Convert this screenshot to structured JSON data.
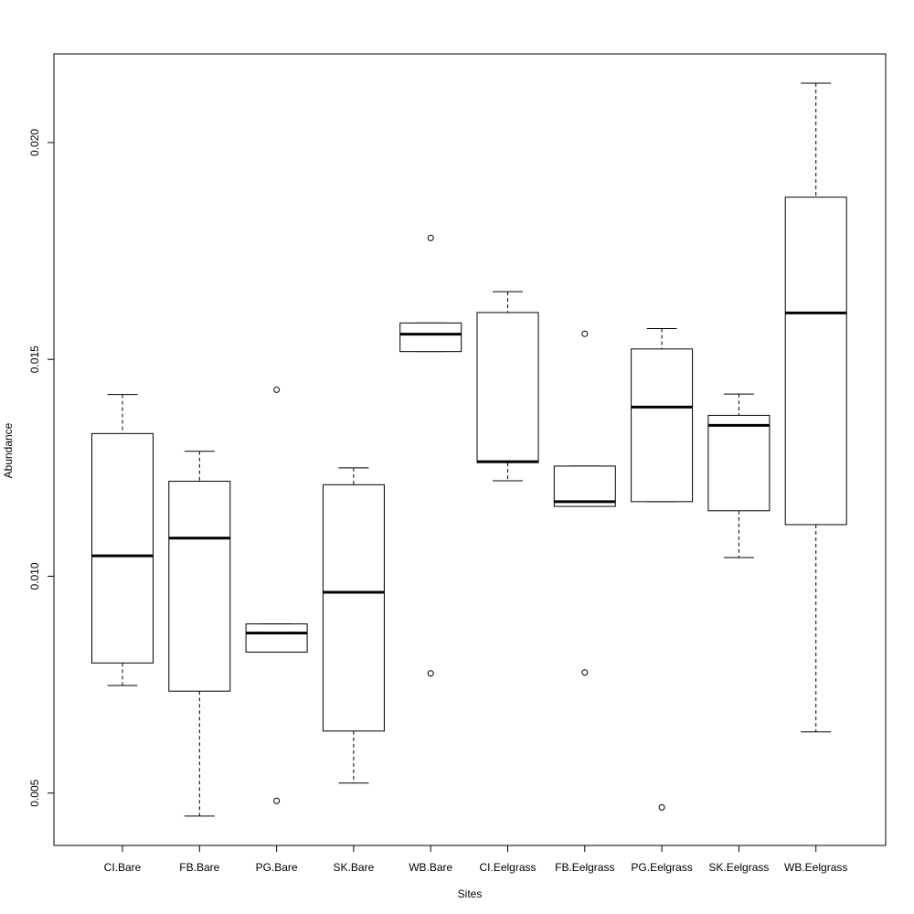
{
  "chart_data": {
    "type": "boxplot",
    "title": "",
    "xlabel": "Sites",
    "ylabel": "Abundance",
    "ylim": [
      0.0044,
      0.0217
    ],
    "yticks": [
      0.005,
      0.01,
      0.015,
      0.02
    ],
    "ytick_labels": [
      "0.005",
      "0.010",
      "0.015",
      "0.020"
    ],
    "grid": false,
    "categories": [
      "CI.Bare",
      "FB.Bare",
      "PG.Bare",
      "SK.Bare",
      "WB.Bare",
      "CI.Eelgrass",
      "FB.Eelgrass",
      "PG.Eelgrass",
      "SK.Eelgrass",
      "WB.Eelgrass"
    ],
    "boxes": [
      {
        "category": "CI.Bare",
        "whisker_low": 0.00748,
        "q1": 0.008,
        "median": 0.01047,
        "q3": 0.01329,
        "whisker_high": 0.01419,
        "outliers": []
      },
      {
        "category": "FB.Bare",
        "whisker_low": 0.00447,
        "q1": 0.00735,
        "median": 0.01088,
        "q3": 0.01219,
        "whisker_high": 0.01288,
        "outliers": []
      },
      {
        "category": "PG.Bare",
        "whisker_low": 0.00825,
        "q1": 0.00825,
        "median": 0.00869,
        "q3": 0.0089,
        "whisker_high": 0.0089,
        "outliers": [
          0.0143,
          0.00482
        ]
      },
      {
        "category": "SK.Bare",
        "whisker_low": 0.00523,
        "q1": 0.00643,
        "median": 0.00963,
        "q3": 0.01211,
        "whisker_high": 0.0125,
        "outliers": []
      },
      {
        "category": "WB.Bare",
        "whisker_low": 0.01518,
        "q1": 0.01518,
        "median": 0.01558,
        "q3": 0.01584,
        "whisker_high": 0.01584,
        "outliers": [
          0.0178,
          0.00776
        ]
      },
      {
        "category": "CI.Eelgrass",
        "whisker_low": 0.0122,
        "q1": 0.01262,
        "median": 0.01264,
        "q3": 0.01608,
        "whisker_high": 0.01656,
        "outliers": []
      },
      {
        "category": "FB.Eelgrass",
        "whisker_low": 0.01161,
        "q1": 0.01161,
        "median": 0.01172,
        "q3": 0.01254,
        "whisker_high": 0.01254,
        "outliers": [
          0.01559,
          0.00778
        ]
      },
      {
        "category": "PG.Eelgrass",
        "whisker_low": 0.01172,
        "q1": 0.01172,
        "median": 0.0139,
        "q3": 0.01524,
        "whisker_high": 0.01571,
        "outliers": [
          0.00467
        ]
      },
      {
        "category": "SK.Eelgrass",
        "whisker_low": 0.01043,
        "q1": 0.01151,
        "median": 0.01348,
        "q3": 0.01371,
        "whisker_high": 0.0142,
        "outliers": []
      },
      {
        "category": "WB.Eelgrass",
        "whisker_low": 0.00641,
        "q1": 0.01119,
        "median": 0.01607,
        "q3": 0.01874,
        "whisker_high": 0.02137,
        "outliers": []
      }
    ]
  }
}
